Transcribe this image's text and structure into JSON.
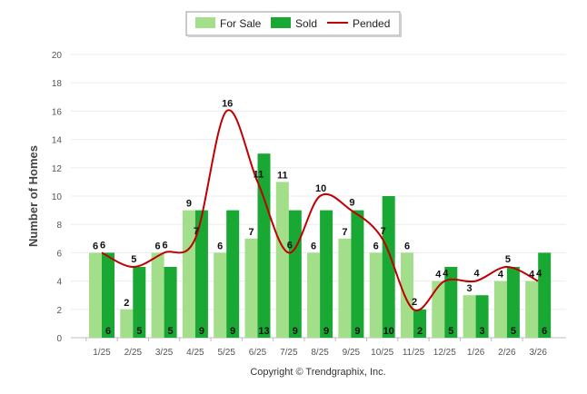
{
  "chart_data": {
    "type": "bar",
    "ylabel": "Number of Homes",
    "ylim": [
      0,
      20
    ],
    "yticks": [
      0,
      2,
      4,
      6,
      8,
      10,
      12,
      14,
      16,
      18,
      20
    ],
    "categories": [
      "1/25",
      "2/25",
      "3/25",
      "4/25",
      "5/25",
      "6/25",
      "7/25",
      "8/25",
      "9/25",
      "10/25",
      "11/25",
      "12/25",
      "1/26",
      "2/26",
      "3/26"
    ],
    "series": [
      {
        "name": "For Sale",
        "kind": "bar",
        "color": "#a3de8a",
        "values": [
          6,
          2,
          6,
          9,
          6,
          7,
          11,
          6,
          7,
          6,
          6,
          4,
          3,
          4,
          4
        ]
      },
      {
        "name": "Sold",
        "kind": "bar",
        "color": "#18a833",
        "values": [
          6,
          5,
          5,
          9,
          9,
          13,
          9,
          9,
          9,
          10,
          2,
          5,
          3,
          5,
          6
        ]
      },
      {
        "name": "Pended",
        "kind": "line",
        "color": "#c00000",
        "values": [
          6,
          5,
          6,
          7,
          16,
          11,
          6,
          10,
          9,
          7,
          2,
          4,
          4,
          5,
          4
        ]
      }
    ],
    "legend_position": "top-center",
    "grid": true,
    "copyright": "Copyright © Trendgraphix, Inc."
  }
}
